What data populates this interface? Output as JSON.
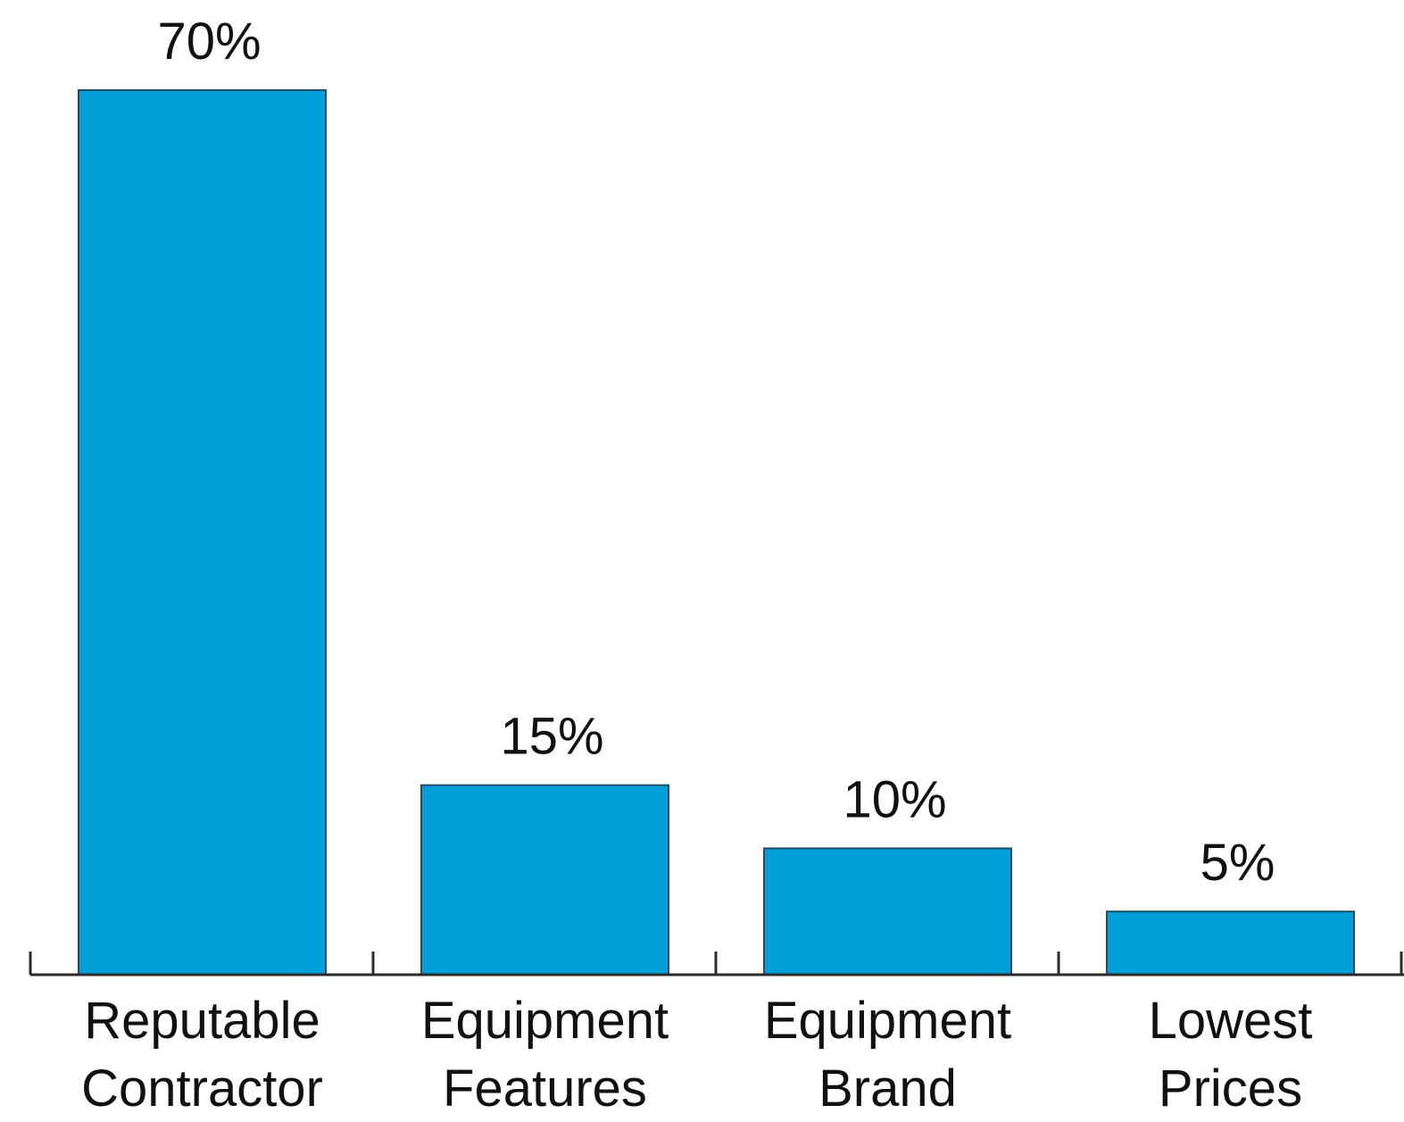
{
  "chart_data": {
    "type": "bar",
    "categories": [
      [
        "Reputable",
        "Contractor"
      ],
      [
        "Equipment",
        "Features"
      ],
      [
        "Equipment",
        "Brand"
      ],
      [
        "Lowest",
        "Prices"
      ]
    ],
    "values": [
      70,
      15,
      10,
      5
    ],
    "data_labels": [
      "70%",
      "15%",
      "10%",
      "5%"
    ],
    "ylim": [
      0,
      70
    ],
    "bar_color": "#009fd7",
    "grid": false,
    "legend": "none"
  }
}
